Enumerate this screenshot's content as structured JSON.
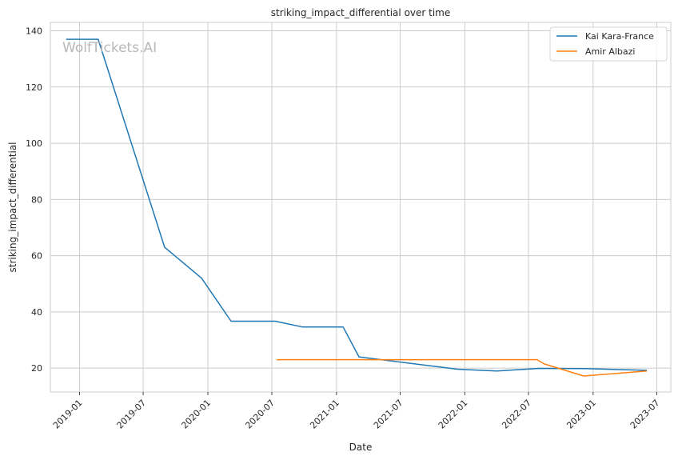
{
  "watermark": "WolfTickets.AI",
  "chart_data": {
    "type": "line",
    "title": "striking_impact_differential over time",
    "xlabel": "Date",
    "ylabel": "striking_impact_differential",
    "x_ticks": [
      "2019-01",
      "2019-07",
      "2020-01",
      "2020-07",
      "2021-01",
      "2021-07",
      "2022-01",
      "2022-07",
      "2023-01",
      "2023-07"
    ],
    "y_ticks": [
      20,
      40,
      60,
      80,
      100,
      120,
      140
    ],
    "xlim": [
      "2018-10-10",
      "2023-08-10"
    ],
    "ylim": [
      11.5,
      143
    ],
    "grid": true,
    "legend_position": "top-right",
    "series": [
      {
        "name": "Kai Kara-France",
        "color": "#1f77b4",
        "points": [
          [
            "2018-11-24",
            137
          ],
          [
            "2019-02-23",
            137
          ],
          [
            "2019-08-31",
            63
          ],
          [
            "2019-12-14",
            52
          ],
          [
            "2020-03-07",
            36.7
          ],
          [
            "2020-07-11",
            36.7
          ],
          [
            "2020-09-27",
            34.6
          ],
          [
            "2021-01-20",
            34.6
          ],
          [
            "2021-03-06",
            24
          ],
          [
            "2021-12-11",
            19.6
          ],
          [
            "2022-04-02",
            19
          ],
          [
            "2022-08-01",
            19.9
          ],
          [
            "2022-12-10",
            19.8
          ],
          [
            "2023-06-03",
            19.2
          ]
        ]
      },
      {
        "name": "Amir Albazi",
        "color": "#ff7f0e",
        "points": [
          [
            "2020-07-15",
            23
          ],
          [
            "2022-07-25",
            23
          ],
          [
            "2022-08-15",
            21.5
          ],
          [
            "2022-12-05",
            17.2
          ],
          [
            "2023-06-03",
            19
          ]
        ]
      }
    ]
  }
}
